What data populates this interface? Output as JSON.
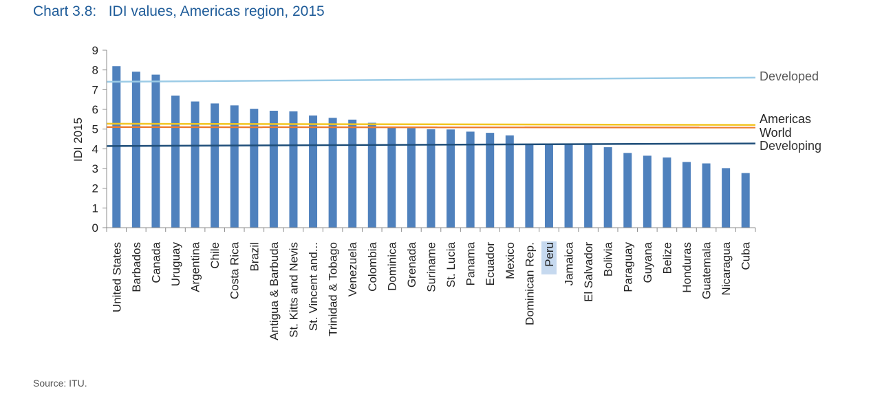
{
  "header": {
    "title": "Chart 3.8:   IDI values, Americas region, 2015"
  },
  "footer": {
    "source": "Source: ITU."
  },
  "chart_data": {
    "type": "bar",
    "ylabel": "IDI 2015",
    "xlabel": "",
    "ylim": [
      0,
      9
    ],
    "yticks": [
      0,
      1,
      2,
      3,
      4,
      5,
      6,
      7,
      8,
      9
    ],
    "grid": false,
    "categories": [
      "United States",
      "Barbados",
      "Canada",
      "Uruguay",
      "Argentina",
      "Chile",
      "Costa Rica",
      "Brazil",
      "Antigua & Barbuda",
      "St. Kitts and Nevis",
      "St. Vincent and...",
      "Trinidad & Tobago",
      "Venezuela",
      "Colombia",
      "Dominica",
      "Grenada",
      "Suriname",
      "St. Lucia",
      "Panama",
      "Ecuador",
      "Mexico",
      "Dominican Rep.",
      "Peru",
      "Jamaica",
      "El Salvador",
      "Bolivia",
      "Paraguay",
      "Guyana",
      "Belize",
      "Honduras",
      "Guatemala",
      "Nicaragua",
      "Cuba"
    ],
    "values": [
      8.19,
      7.91,
      7.76,
      6.7,
      6.4,
      6.3,
      6.2,
      6.03,
      5.93,
      5.9,
      5.69,
      5.57,
      5.48,
      5.32,
      5.06,
      5.05,
      4.99,
      4.98,
      4.87,
      4.81,
      4.68,
      4.26,
      4.26,
      4.23,
      4.2,
      4.08,
      3.79,
      3.65,
      3.56,
      3.33,
      3.26,
      3.02,
      2.77
    ],
    "bar_color": "#4f81bd",
    "highlighted_category": "Peru",
    "reference_lines": [
      {
        "name": "Developed",
        "start": 7.4,
        "end": 7.61,
        "color": "#9bcbe6"
      },
      {
        "name": "Americas",
        "start": 5.27,
        "end": 5.21,
        "color": "#f2c522"
      },
      {
        "name": "World",
        "start": 5.1,
        "end": 5.08,
        "color": "#ed7d31"
      },
      {
        "name": "Developing",
        "start": 4.14,
        "end": 4.27,
        "color": "#1f4e79"
      }
    ]
  }
}
